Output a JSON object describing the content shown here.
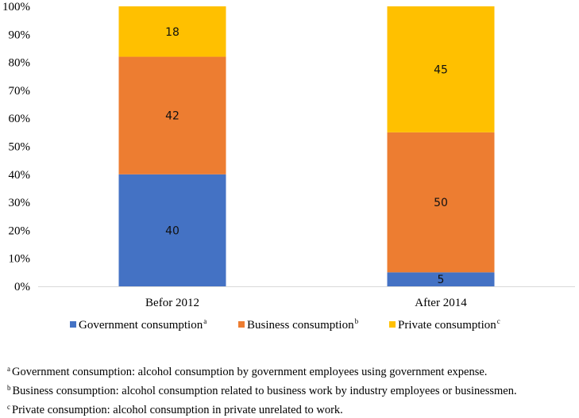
{
  "chart_data": {
    "type": "bar",
    "stacked": true,
    "categories": [
      "Befor 2012",
      "After 2014"
    ],
    "series": [
      {
        "name": "Government consumption",
        "superscript": "a",
        "color": "#4472C4",
        "values": [
          40,
          5
        ]
      },
      {
        "name": "Business consumption",
        "superscript": "b",
        "color": "#ED7D31",
        "values": [
          42,
          50
        ]
      },
      {
        "name": "Private consumption",
        "superscript": "c",
        "color": "#FFC000",
        "values": [
          18,
          45
        ]
      }
    ],
    "ylim": [
      0,
      100
    ],
    "yticks": [
      "0%",
      "10%",
      "20%",
      "30%",
      "40%",
      "50%",
      "60%",
      "70%",
      "80%",
      "90%",
      "100%"
    ],
    "legend_position": "bottom",
    "grid": false
  },
  "footnotes": [
    {
      "mark": "a",
      "text": "Government consumption: alcohol consumption by government employees using government expense."
    },
    {
      "mark": "b",
      "text": "Business consumption: alcohol consumption related to business work by industry employees or businessmen."
    },
    {
      "mark": "c",
      "text": "Private consumption: alcohol consumption in private unrelated to work."
    }
  ]
}
